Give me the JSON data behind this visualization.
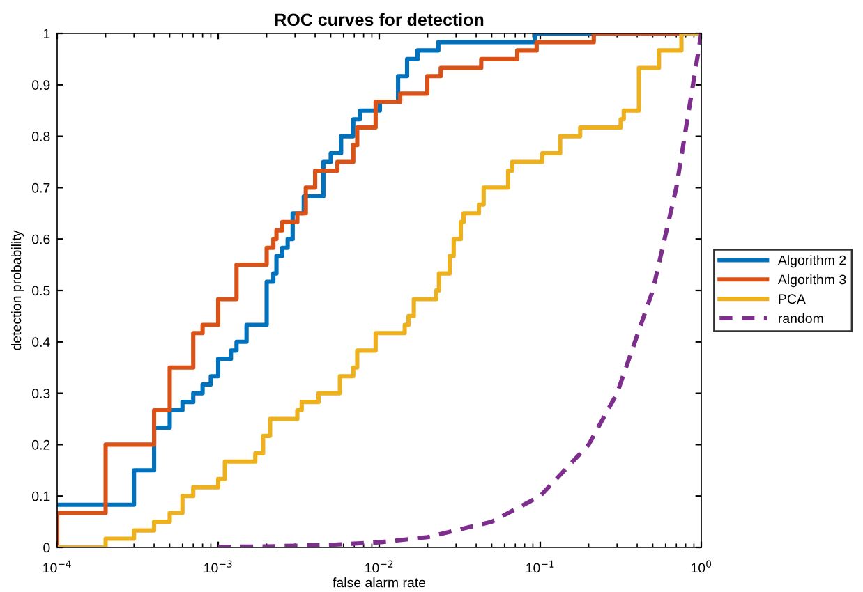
{
  "chart_data": {
    "type": "step",
    "title": "ROC curves for detection",
    "xlabel": "false alarm rate",
    "ylabel": "detection probability",
    "log": "x",
    "xlim": [
      0.0001,
      1
    ],
    "xticks": [
      {
        "value": 0.0001,
        "label": "10$^{−4}$"
      },
      {
        "value": 0.001,
        "label": "10$^{−3}$"
      },
      {
        "value": 0.01,
        "label": "10$^{−2}$"
      },
      {
        "value": 0.1,
        "label": "10$^{−1}$"
      },
      {
        "value": 1,
        "label": "10$^{0}$"
      }
    ],
    "ylim": [
      0,
      1
    ],
    "yticks": [
      0,
      0.1,
      0.2,
      0.3,
      0.4,
      0.5,
      0.6,
      0.7,
      0.8,
      0.9,
      1
    ],
    "grid": false,
    "legend": "right",
    "series": [
      {
        "name": "Algorithm 2",
        "color": "#0072bd",
        "x": [
          0.0001,
          0.0003,
          0.0004,
          0.0005,
          0.0006,
          0.0007,
          0.0008,
          0.0009,
          0.001,
          0.0012,
          0.0013,
          0.0015,
          0.002,
          0.0022,
          0.0023,
          0.0025,
          0.0027,
          0.0029,
          0.0034,
          0.0045,
          0.005,
          0.0058,
          0.0069,
          0.0076,
          0.0101,
          0.0131,
          0.0149,
          0.0173,
          0.0233,
          0.093,
          1
        ],
        "values": [
          0.083,
          0.15,
          0.233,
          0.267,
          0.283,
          0.3,
          0.317,
          0.333,
          0.367,
          0.383,
          0.4,
          0.433,
          0.517,
          0.533,
          0.567,
          0.583,
          0.6,
          0.65,
          0.683,
          0.75,
          0.767,
          0.8,
          0.833,
          0.85,
          0.867,
          0.917,
          0.95,
          0.967,
          0.983,
          1,
          1
        ]
      },
      {
        "name": "Algorithm 3",
        "color": "#d95319",
        "x": [
          0.0001,
          0.0001,
          0.0002,
          0.0004,
          0.0005,
          0.0007,
          0.0008,
          0.001,
          0.0013,
          0.002,
          0.0022,
          0.0023,
          0.0025,
          0.0031,
          0.0035,
          0.004,
          0.0055,
          0.0069,
          0.0073,
          0.0095,
          0.0135,
          0.0199,
          0.0241,
          0.043,
          0.072,
          0.095,
          0.215,
          1
        ],
        "values": [
          0,
          0.067,
          0.2,
          0.267,
          0.35,
          0.417,
          0.433,
          0.483,
          0.55,
          0.583,
          0.6,
          0.617,
          0.633,
          0.65,
          0.7,
          0.733,
          0.75,
          0.783,
          0.817,
          0.867,
          0.883,
          0.917,
          0.933,
          0.95,
          0.967,
          0.983,
          1,
          1
        ]
      },
      {
        "name": "PCA",
        "color": "#edb120",
        "x": [
          0.0001,
          0.0002,
          0.0003,
          0.0004,
          0.0005,
          0.0006,
          0.0007,
          0.001,
          0.0011,
          0.0017,
          0.0019,
          0.0021,
          0.0031,
          0.0033,
          0.0042,
          0.0057,
          0.0069,
          0.0073,
          0.0095,
          0.0144,
          0.0152,
          0.0164,
          0.0226,
          0.0235,
          0.0274,
          0.029,
          0.0321,
          0.0334,
          0.0416,
          0.0445,
          0.0632,
          0.067,
          0.079,
          0.103,
          0.133,
          0.177,
          0.316,
          0.33,
          0.41,
          0.546,
          0.753,
          1
        ],
        "values": [
          0,
          0.017,
          0.033,
          0.05,
          0.067,
          0.1,
          0.117,
          0.133,
          0.167,
          0.183,
          0.217,
          0.25,
          0.267,
          0.283,
          0.3,
          0.333,
          0.35,
          0.383,
          0.417,
          0.433,
          0.45,
          0.483,
          0.5,
          0.533,
          0.567,
          0.6,
          0.633,
          0.65,
          0.667,
          0.7,
          0.733,
          0.75,
          0.75,
          0.767,
          0.8,
          0.817,
          0.833,
          0.85,
          0.933,
          0.967,
          1,
          1
        ]
      },
      {
        "name": "random",
        "color": "#7e2f8e",
        "type": "line",
        "line_style": "dashed",
        "x": [
          0.001,
          0.002,
          0.005,
          0.01,
          0.02,
          0.05,
          0.1,
          0.2,
          0.3,
          0.5,
          0.7,
          1
        ],
        "values": [
          0.001,
          0.002,
          0.005,
          0.01,
          0.02,
          0.05,
          0.1,
          0.2,
          0.3,
          0.5,
          0.7,
          1
        ]
      }
    ]
  }
}
